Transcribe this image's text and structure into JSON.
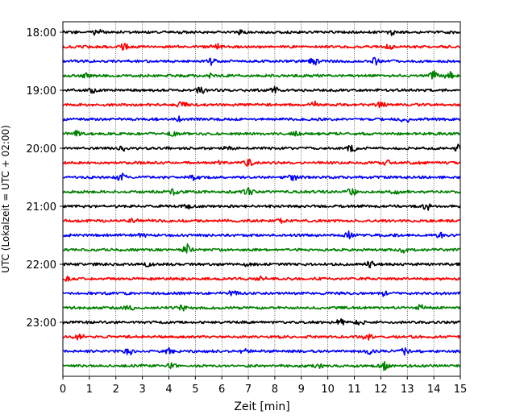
{
  "chart_data": {
    "type": "line",
    "title": "",
    "xlabel": "Zeit  [min]",
    "ylabel": "UTC (Lokalzeit = UTC + 02:00)",
    "xlim": [
      0,
      15
    ],
    "x_ticks": [
      "0",
      "1",
      "2",
      "3",
      "4",
      "5",
      "6",
      "7",
      "8",
      "9",
      "10",
      "11",
      "12",
      "13",
      "14",
      "15"
    ],
    "y_ticks": [
      {
        "label": "18:00",
        "row": 0
      },
      {
        "label": "19:00",
        "row": 4
      },
      {
        "label": "20:00",
        "row": 8
      },
      {
        "label": "21:00",
        "row": 12
      },
      {
        "label": "22:00",
        "row": 16
      },
      {
        "label": "23:00",
        "row": 20
      }
    ],
    "grid": "vertical dotted",
    "trace_colors": [
      "#000000",
      "#ff0000",
      "#0000ff",
      "#008000"
    ],
    "series": [
      {
        "start": "18:00",
        "color": "#000000",
        "events": [
          [
            1.3,
            0.6
          ],
          [
            6.6,
            0.7
          ],
          [
            12.4,
            0.5
          ]
        ]
      },
      {
        "start": "18:15",
        "color": "#ff0000",
        "events": [
          [
            2.3,
            0.6
          ],
          [
            5.8,
            0.5
          ],
          [
            12.3,
            0.4
          ]
        ]
      },
      {
        "start": "18:30",
        "color": "#0000ff",
        "events": [
          [
            5.6,
            0.6
          ],
          [
            9.5,
            0.6
          ],
          [
            11.8,
            0.7
          ]
        ]
      },
      {
        "start": "18:45",
        "color": "#008000",
        "events": [
          [
            0.9,
            0.5
          ],
          [
            5.5,
            0.4
          ],
          [
            14.0,
            1.0
          ],
          [
            14.6,
            0.7
          ]
        ]
      },
      {
        "start": "19:00",
        "color": "#000000",
        "events": [
          [
            1.1,
            0.5
          ],
          [
            5.2,
            0.7
          ],
          [
            8.0,
            0.6
          ]
        ]
      },
      {
        "start": "19:15",
        "color": "#ff0000",
        "events": [
          [
            4.5,
            0.6
          ],
          [
            9.5,
            0.6
          ],
          [
            12.0,
            0.5
          ]
        ]
      },
      {
        "start": "19:30",
        "color": "#0000ff",
        "events": [
          [
            4.4,
            0.4
          ],
          [
            12.9,
            0.7
          ]
        ]
      },
      {
        "start": "19:45",
        "color": "#008000",
        "events": [
          [
            0.5,
            0.5
          ],
          [
            4.1,
            0.4
          ],
          [
            8.8,
            0.5
          ]
        ]
      },
      {
        "start": "20:00",
        "color": "#000000",
        "events": [
          [
            2.3,
            0.5
          ],
          [
            6.3,
            0.6
          ],
          [
            10.9,
            0.7
          ],
          [
            14.9,
            0.8
          ]
        ]
      },
      {
        "start": "20:15",
        "color": "#ff0000",
        "events": [
          [
            6.0,
            0.4
          ],
          [
            7.0,
            0.6
          ],
          [
            12.2,
            0.5
          ]
        ]
      },
      {
        "start": "20:30",
        "color": "#0000ff",
        "events": [
          [
            2.2,
            0.7
          ],
          [
            5.0,
            0.6
          ],
          [
            8.7,
            0.6
          ]
        ]
      },
      {
        "start": "20:45",
        "color": "#008000",
        "events": [
          [
            4.2,
            0.5
          ],
          [
            7.0,
            0.6
          ],
          [
            10.9,
            0.7
          ],
          [
            12.5,
            0.5
          ]
        ]
      },
      {
        "start": "21:00",
        "color": "#000000",
        "events": [
          [
            4.7,
            0.6
          ],
          [
            13.7,
            0.9
          ]
        ]
      },
      {
        "start": "21:15",
        "color": "#ff0000",
        "events": [
          [
            2.7,
            0.5
          ],
          [
            8.2,
            0.4
          ]
        ]
      },
      {
        "start": "21:30",
        "color": "#0000ff",
        "events": [
          [
            3.0,
            0.4
          ],
          [
            10.8,
            0.6
          ],
          [
            14.2,
            0.5
          ]
        ]
      },
      {
        "start": "21:45",
        "color": "#008000",
        "events": [
          [
            4.7,
            1.0
          ],
          [
            12.8,
            0.6
          ]
        ]
      },
      {
        "start": "22:00",
        "color": "#000000",
        "events": [
          [
            3.2,
            0.4
          ],
          [
            7.0,
            0.4
          ],
          [
            11.6,
            0.5
          ]
        ]
      },
      {
        "start": "22:15",
        "color": "#ff0000",
        "events": [
          [
            0.2,
            0.4
          ],
          [
            7.5,
            0.4
          ]
        ]
      },
      {
        "start": "22:30",
        "color": "#0000ff",
        "events": [
          [
            6.4,
            0.5
          ],
          [
            12.1,
            0.4
          ]
        ]
      },
      {
        "start": "22:45",
        "color": "#008000",
        "events": [
          [
            2.5,
            0.5
          ],
          [
            4.5,
            0.5
          ],
          [
            13.5,
            0.5
          ]
        ]
      },
      {
        "start": "23:00",
        "color": "#000000",
        "events": [
          [
            10.5,
            0.5
          ],
          [
            11.2,
            0.4
          ]
        ]
      },
      {
        "start": "23:15",
        "color": "#ff0000",
        "events": [
          [
            0.6,
            0.6
          ],
          [
            11.5,
            0.7
          ]
        ]
      },
      {
        "start": "23:30",
        "color": "#0000ff",
        "events": [
          [
            2.5,
            0.7
          ],
          [
            4.0,
            0.5
          ],
          [
            6.9,
            0.5
          ],
          [
            11.6,
            0.6
          ],
          [
            12.9,
            0.6
          ]
        ]
      },
      {
        "start": "23:45",
        "color": "#008000",
        "events": [
          [
            4.1,
            0.5
          ],
          [
            9.6,
            0.5
          ],
          [
            12.1,
            0.9
          ]
        ]
      }
    ]
  }
}
